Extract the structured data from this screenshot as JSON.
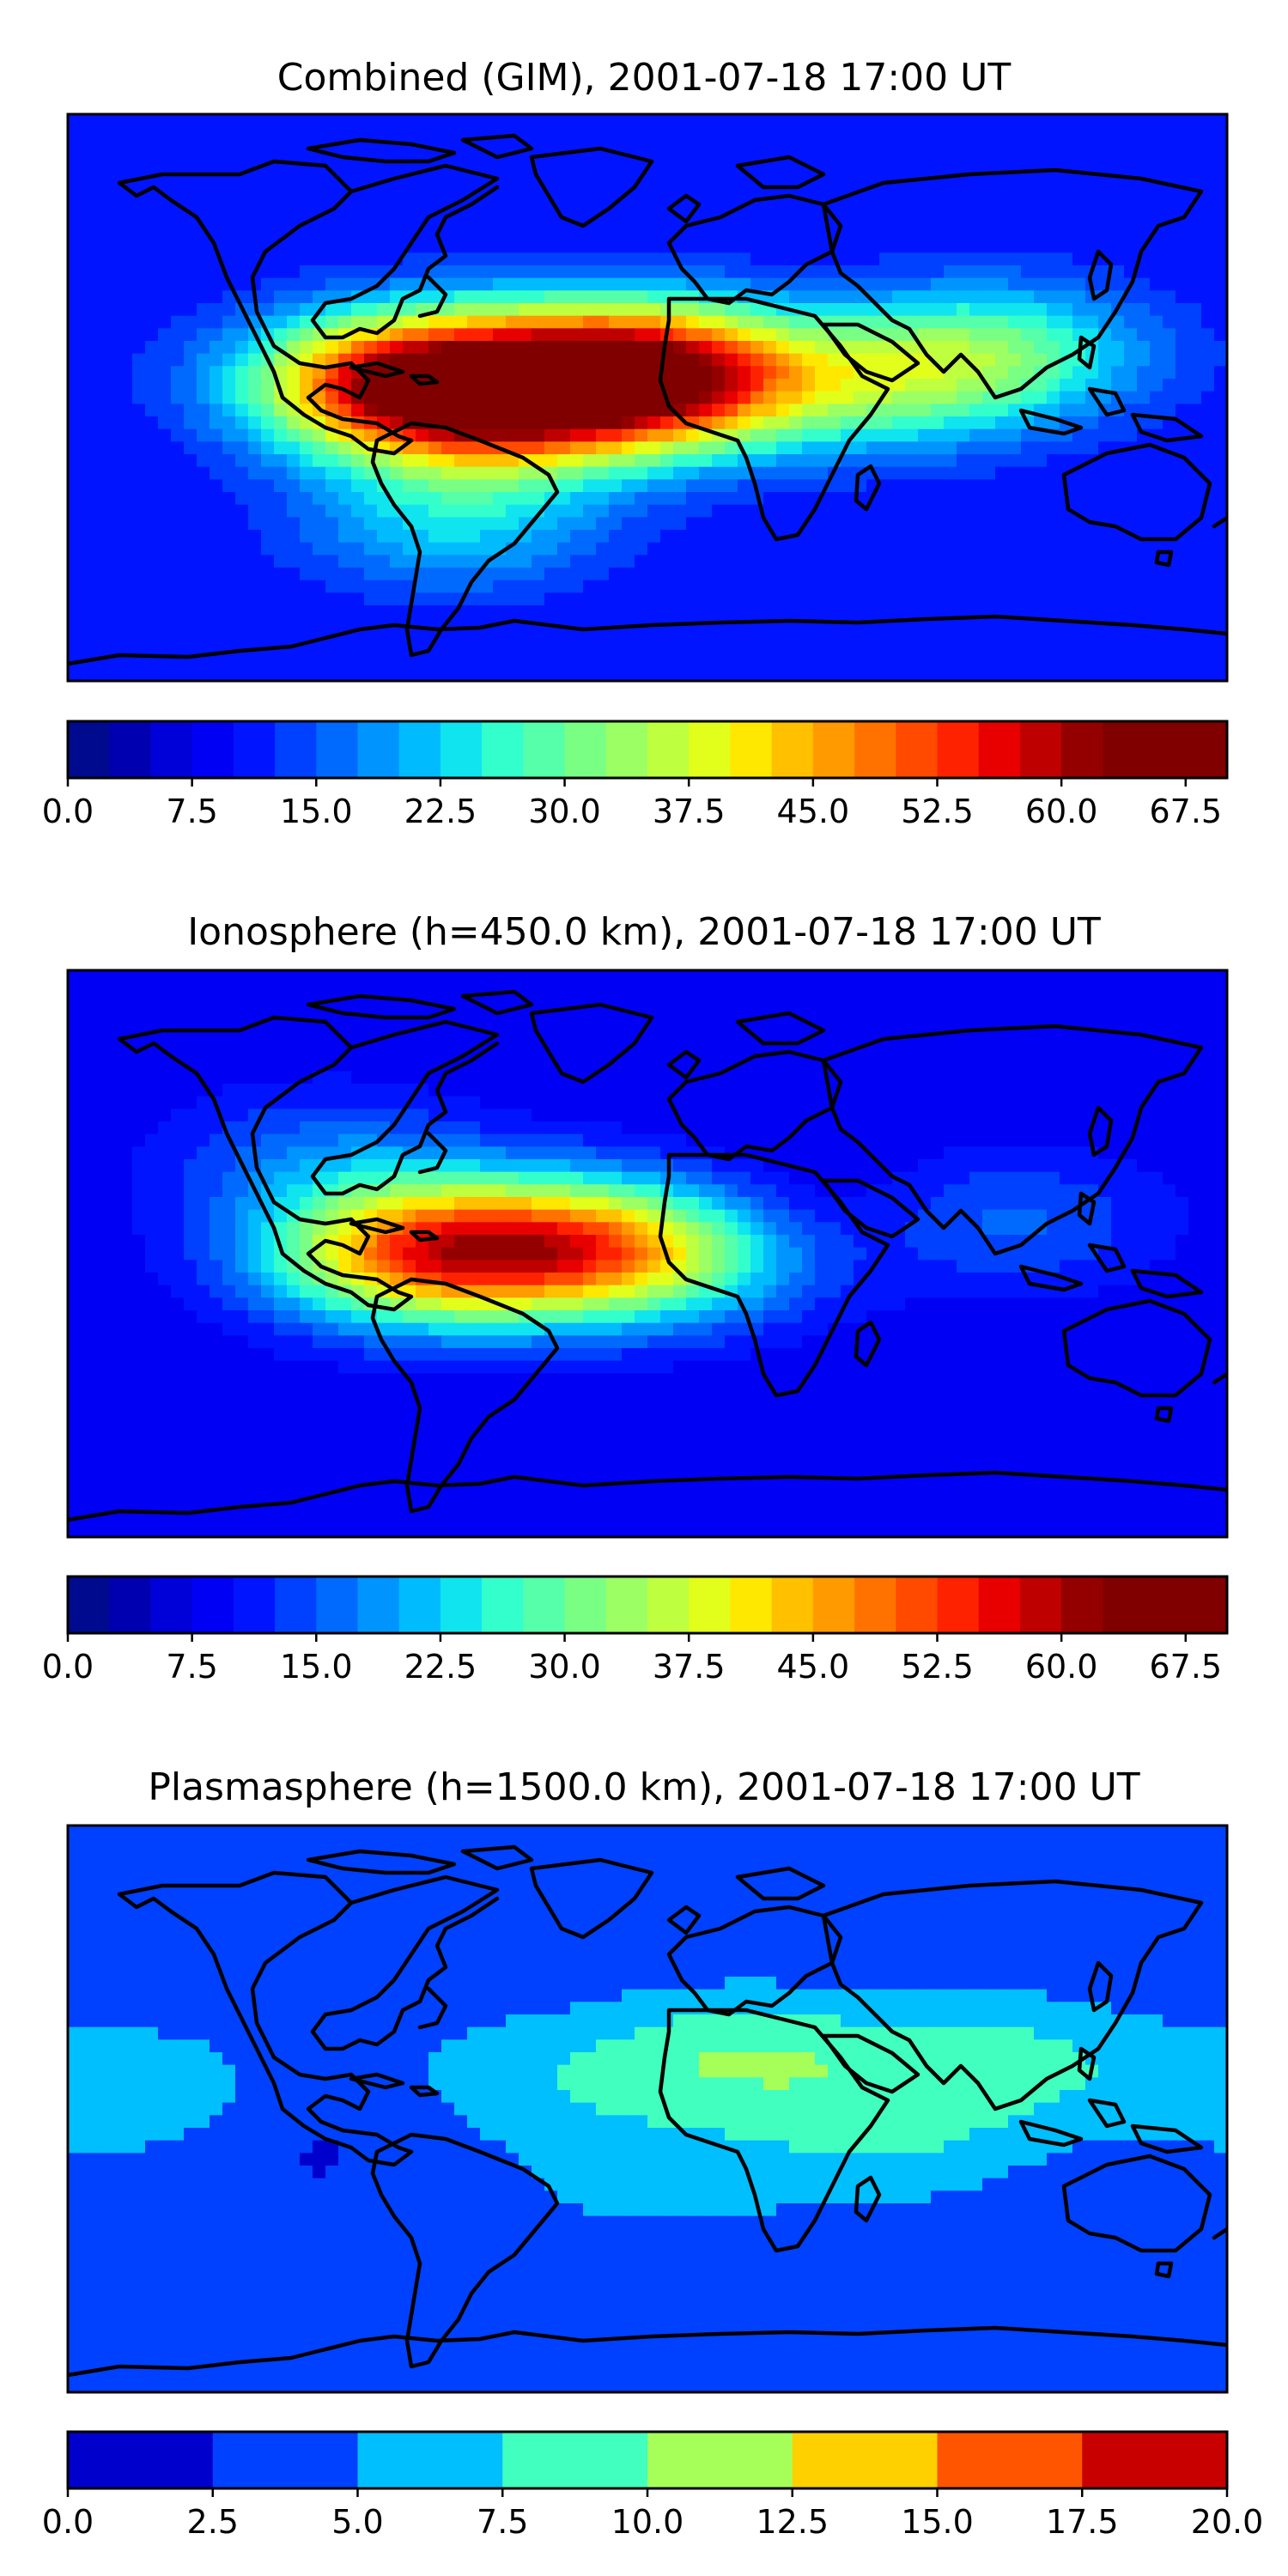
{
  "chart_data": [
    {
      "type": "heatmap",
      "title": "Combined (GIM), 2001-07-18 17:00 UT",
      "xlim": [
        -180,
        180
      ],
      "ylim": [
        -90,
        90
      ],
      "colorbar": {
        "min": 0,
        "max": 70,
        "step": 2.5,
        "ticks": [
          "0.0",
          "7.5",
          "15.0",
          "22.5",
          "30.0",
          "37.5",
          "45.0",
          "52.5",
          "60.0",
          "67.5"
        ],
        "tick_values": [
          0,
          7.5,
          15,
          22.5,
          30,
          37.5,
          45,
          52.5,
          60,
          67.5
        ],
        "colors": [
          "#000a8f",
          "#0000b0",
          "#0000d8",
          "#0000f5",
          "#0014ff",
          "#0040ff",
          "#006aff",
          "#0094ff",
          "#00bcff",
          "#10e4ef",
          "#33ffcc",
          "#56ffa9",
          "#7aff85",
          "#9cff63",
          "#beff40",
          "#e2ff1c",
          "#ffe800",
          "#ffc000",
          "#ff9a00",
          "#ff7200",
          "#ff4a00",
          "#ff2200",
          "#e80000",
          "#bf0000",
          "#940000",
          "#800000",
          "#800000",
          "#800000"
        ]
      },
      "field": {
        "base": 10,
        "blobs": [
          {
            "lon": -75,
            "lat": 5,
            "value": 45
          },
          {
            "lon": -45,
            "lat": -5,
            "value": 22
          },
          {
            "lon": -10,
            "lat": 8,
            "value": 42
          },
          {
            "lon": 15,
            "lat": 5,
            "value": 18
          },
          {
            "lon": 75,
            "lat": 5,
            "value": 15
          },
          {
            "lon": 110,
            "lat": 15,
            "value": 16
          },
          {
            "lon": -60,
            "lat": -40,
            "value": 12
          }
        ]
      }
    },
    {
      "type": "heatmap",
      "title": "Ionosphere  (h=450.0 km), 2001-07-18 17:00 UT",
      "xlim": [
        -180,
        180
      ],
      "ylim": [
        -90,
        90
      ],
      "colorbar": {
        "min": 0,
        "max": 70,
        "step": 2.5,
        "ticks": [
          "0.0",
          "7.5",
          "15.0",
          "22.5",
          "30.0",
          "37.5",
          "45.0",
          "52.5",
          "60.0",
          "67.5"
        ],
        "tick_values": [
          0,
          7.5,
          15,
          22.5,
          30,
          37.5,
          45,
          52.5,
          60,
          67.5
        ],
        "colors": [
          "#000a8f",
          "#0000b0",
          "#0000d8",
          "#0000f5",
          "#0014ff",
          "#0040ff",
          "#006aff",
          "#0094ff",
          "#00bcff",
          "#10e4ef",
          "#33ffcc",
          "#56ffa9",
          "#7aff85",
          "#9cff63",
          "#beff40",
          "#e2ff1c",
          "#ffe800",
          "#ffc000",
          "#ff9a00",
          "#ff7200",
          "#ff4a00",
          "#ff2200",
          "#e80000",
          "#bf0000",
          "#940000",
          "#800000",
          "#800000",
          "#800000"
        ]
      },
      "field": {
        "base": 8,
        "blobs": [
          {
            "lon": -70,
            "lat": 0,
            "value": 38
          },
          {
            "lon": -20,
            "lat": 2,
            "value": 30
          },
          {
            "lon": 15,
            "lat": 0,
            "value": 12
          },
          {
            "lon": -100,
            "lat": 30,
            "value": 8
          },
          {
            "lon": 110,
            "lat": 10,
            "value": 8
          },
          {
            "lon": 45,
            "lat": 10,
            "value": -5
          }
        ]
      }
    },
    {
      "type": "heatmap",
      "title": "Plasmasphere (h=1500.0 km), 2001-07-18 17:00 UT",
      "xlim": [
        -180,
        180
      ],
      "ylim": [
        -90,
        90
      ],
      "colorbar": {
        "min": 0,
        "max": 20,
        "step": 2.5,
        "ticks": [
          "0.0",
          "2.5",
          "5.0",
          "7.5",
          "10.0",
          "12.5",
          "15.0",
          "17.5",
          "20.0"
        ],
        "tick_values": [
          0,
          2.5,
          5,
          7.5,
          10,
          12.5,
          15,
          17.5,
          20
        ],
        "colors": [
          "#0000cd",
          "#0040ff",
          "#00bfff",
          "#40ffbf",
          "#a6ff59",
          "#ffd000",
          "#ff5500",
          "#c80000"
        ]
      },
      "field": {
        "base": 3,
        "blobs": [
          {
            "lon": 30,
            "lat": 15,
            "value": 7
          },
          {
            "lon": 110,
            "lat": 15,
            "value": 5
          },
          {
            "lon": 70,
            "lat": -10,
            "value": 4.5
          },
          {
            "lon": -160,
            "lat": 5,
            "value": 4.5
          },
          {
            "lon": -40,
            "lat": 10,
            "value": 3
          },
          {
            "lon": 0,
            "lat": -20,
            "value": 3
          },
          {
            "lon": -110,
            "lat": -5,
            "value": -1.5
          },
          {
            "lon": 40,
            "lat": -2,
            "value": -2
          }
        ]
      }
    }
  ],
  "coastline_icon": "world-coastline-map"
}
